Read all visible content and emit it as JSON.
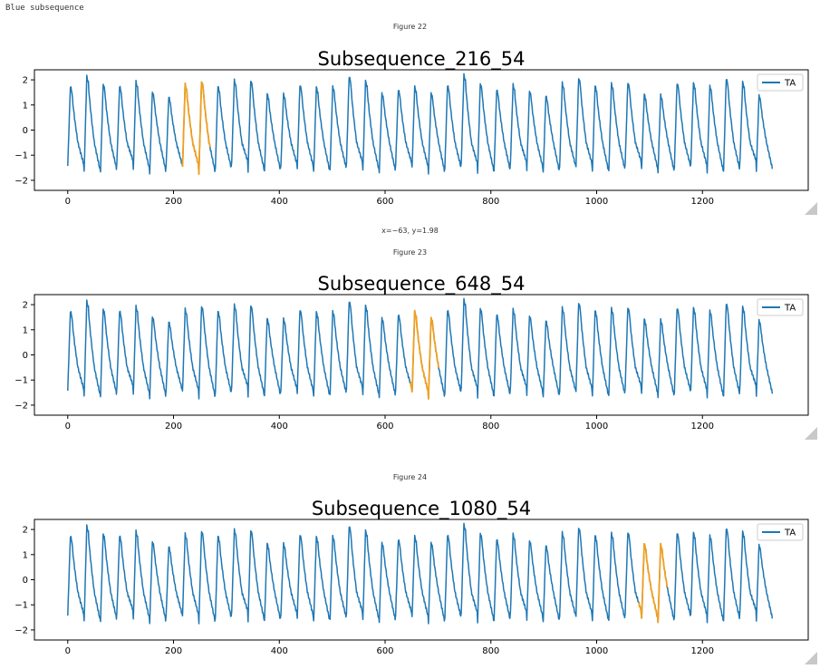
{
  "output_text": "Blue subsequence",
  "coordinate_readout": "x=−63, y=1.98",
  "colors": {
    "series": "#1f77b4",
    "highlight": "#f0a020",
    "axis": "#000000"
  },
  "icons": [
    "resize-handle-icon"
  ],
  "figures": [
    {
      "label": "Figure 22"
    },
    {
      "label": "Figure 23"
    },
    {
      "label": "Figure 24"
    }
  ],
  "chart_data": [
    {
      "type": "line",
      "title": "Subsequence_216_54",
      "xlabel": "",
      "ylabel": "",
      "xlim": [
        -63,
        1400
      ],
      "ylim": [
        -2.4,
        2.4
      ],
      "xticks": [
        0,
        200,
        400,
        600,
        800,
        1000,
        1200
      ],
      "yticks": [
        -2,
        -1,
        0,
        1,
        2
      ],
      "legend": {
        "position": "top-right",
        "entries": [
          "TA"
        ]
      },
      "grid": false,
      "series": [
        {
          "name": "TA",
          "n_points": 1333,
          "min": -2.2,
          "max": 2.2
        }
      ],
      "highlight": {
        "start": 216,
        "length": 54
      }
    },
    {
      "type": "line",
      "title": "Subsequence_648_54",
      "xlabel": "",
      "ylabel": "",
      "xlim": [
        -63,
        1400
      ],
      "ylim": [
        -2.4,
        2.4
      ],
      "xticks": [
        0,
        200,
        400,
        600,
        800,
        1000,
        1200
      ],
      "yticks": [
        -2,
        -1,
        0,
        1,
        2
      ],
      "legend": {
        "position": "top-right",
        "entries": [
          "TA"
        ]
      },
      "grid": false,
      "series": [
        {
          "name": "TA",
          "n_points": 1333,
          "min": -2.2,
          "max": 2.2
        }
      ],
      "highlight": {
        "start": 648,
        "length": 54
      }
    },
    {
      "type": "line",
      "title": "Subsequence_1080_54",
      "xlabel": "",
      "ylabel": "",
      "xlim": [
        -63,
        1400
      ],
      "ylim": [
        -2.4,
        2.4
      ],
      "xticks": [
        0,
        200,
        400,
        600,
        800,
        1000,
        1200
      ],
      "yticks": [
        -2,
        -1,
        0,
        1,
        2
      ],
      "legend": {
        "position": "top-right",
        "entries": [
          "TA"
        ]
      },
      "grid": false,
      "series": [
        {
          "name": "TA",
          "n_points": 1333,
          "min": -2.2,
          "max": 2.2
        }
      ],
      "highlight": {
        "start": 1080,
        "length": 54
      }
    }
  ]
}
